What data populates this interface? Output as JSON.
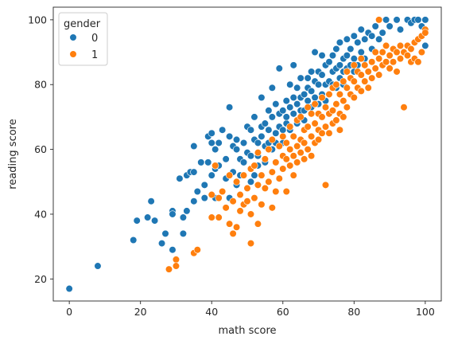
{
  "chart_data": {
    "type": "scatter",
    "title": "",
    "xlabel": "math score",
    "ylabel": "reading score",
    "xlim": [
      -4.5,
      104.5
    ],
    "ylim": [
      13.2,
      103.9
    ],
    "xticks": [
      0,
      20,
      40,
      60,
      80,
      100
    ],
    "yticks": [
      20,
      40,
      60,
      80,
      100
    ],
    "grid": false,
    "legend": {
      "title": "gender",
      "placement": "upper-left"
    },
    "series": [
      {
        "name": "0",
        "color": "#1f77b4",
        "points": [
          [
            0,
            17
          ],
          [
            8,
            24
          ],
          [
            18,
            32
          ],
          [
            19,
            38
          ],
          [
            22,
            39
          ],
          [
            23,
            44
          ],
          [
            24,
            38
          ],
          [
            26,
            31
          ],
          [
            27,
            34
          ],
          [
            29,
            41
          ],
          [
            29,
            40
          ],
          [
            29,
            29
          ],
          [
            31,
            51
          ],
          [
            32,
            39
          ],
          [
            32,
            34
          ],
          [
            33,
            41
          ],
          [
            33,
            52
          ],
          [
            34,
            53
          ],
          [
            35,
            44
          ],
          [
            35,
            61
          ],
          [
            35,
            53
          ],
          [
            36,
            47
          ],
          [
            37,
            56
          ],
          [
            38,
            49
          ],
          [
            38,
            45
          ],
          [
            39,
            56
          ],
          [
            39,
            64
          ],
          [
            40,
            52
          ],
          [
            40,
            62
          ],
          [
            40,
            65
          ],
          [
            41,
            45
          ],
          [
            41,
            54
          ],
          [
            41,
            60
          ],
          [
            42,
            55
          ],
          [
            42,
            62
          ],
          [
            43,
            66
          ],
          [
            44,
            51
          ],
          [
            44,
            57
          ],
          [
            45,
            45
          ],
          [
            45,
            64
          ],
          [
            45,
            73
          ],
          [
            46,
            53
          ],
          [
            46,
            61
          ],
          [
            47,
            49
          ],
          [
            47,
            63
          ],
          [
            47,
            60
          ],
          [
            48,
            57
          ],
          [
            48,
            52
          ],
          [
            49,
            62
          ],
          [
            49,
            56
          ],
          [
            50,
            67
          ],
          [
            50,
            59
          ],
          [
            51,
            50
          ],
          [
            51,
            58
          ],
          [
            51,
            66
          ],
          [
            52,
            52
          ],
          [
            52,
            63
          ],
          [
            52,
            70
          ],
          [
            53,
            55
          ],
          [
            53,
            62
          ],
          [
            53,
            58
          ],
          [
            54,
            64
          ],
          [
            54,
            67
          ],
          [
            54,
            76
          ],
          [
            55,
            61
          ],
          [
            55,
            68
          ],
          [
            55,
            56
          ],
          [
            56,
            62
          ],
          [
            56,
            72
          ],
          [
            56,
            66
          ],
          [
            57,
            60
          ],
          [
            57,
            70
          ],
          [
            57,
            79
          ],
          [
            58,
            65
          ],
          [
            58,
            74
          ],
          [
            58,
            62
          ],
          [
            59,
            67
          ],
          [
            59,
            71
          ],
          [
            59,
            85
          ],
          [
            60,
            66
          ],
          [
            60,
            72
          ],
          [
            60,
            62
          ],
          [
            61,
            68
          ],
          [
            61,
            75
          ],
          [
            61,
            70
          ],
          [
            62,
            80
          ],
          [
            62,
            66
          ],
          [
            62,
            73
          ],
          [
            63,
            71
          ],
          [
            63,
            76
          ],
          [
            63,
            86
          ],
          [
            64,
            74
          ],
          [
            64,
            68
          ],
          [
            64,
            79
          ],
          [
            65,
            72
          ],
          [
            65,
            82
          ],
          [
            65,
            76
          ],
          [
            66,
            77
          ],
          [
            66,
            72
          ],
          [
            66,
            69
          ],
          [
            67,
            82
          ],
          [
            67,
            75
          ],
          [
            67,
            79
          ],
          [
            68,
            78
          ],
          [
            68,
            84
          ],
          [
            68,
            73
          ],
          [
            69,
            81
          ],
          [
            69,
            76
          ],
          [
            69,
            90
          ],
          [
            70,
            80
          ],
          [
            70,
            74
          ],
          [
            70,
            84
          ],
          [
            71,
            83
          ],
          [
            71,
            77
          ],
          [
            71,
            89
          ],
          [
            72,
            80
          ],
          [
            72,
            86
          ],
          [
            72,
            75
          ],
          [
            73,
            81
          ],
          [
            73,
            87
          ],
          [
            73,
            77
          ],
          [
            74,
            84
          ],
          [
            74,
            89
          ],
          [
            74,
            80
          ],
          [
            75,
            85
          ],
          [
            75,
            91
          ],
          [
            75,
            79
          ],
          [
            76,
            86
          ],
          [
            76,
            82
          ],
          [
            76,
            93
          ],
          [
            77,
            84
          ],
          [
            77,
            88
          ],
          [
            77,
            80
          ],
          [
            78,
            89
          ],
          [
            78,
            85
          ],
          [
            78,
            94
          ],
          [
            79,
            86
          ],
          [
            79,
            91
          ],
          [
            80,
            88
          ],
          [
            80,
            95
          ],
          [
            80,
            84
          ],
          [
            81,
            93
          ],
          [
            81,
            86
          ],
          [
            82,
            97
          ],
          [
            82,
            90
          ],
          [
            83,
            94
          ],
          [
            83,
            88
          ],
          [
            84,
            96
          ],
          [
            85,
            91
          ],
          [
            85,
            95
          ],
          [
            86,
            98
          ],
          [
            87,
            94
          ],
          [
            88,
            96
          ],
          [
            89,
            100
          ],
          [
            90,
            98
          ],
          [
            92,
            100
          ],
          [
            93,
            97
          ],
          [
            95,
            100
          ],
          [
            96,
            99
          ],
          [
            97,
            100
          ],
          [
            98,
            100
          ],
          [
            99,
            98
          ],
          [
            100,
            100
          ],
          [
            100,
            92
          ]
        ]
      },
      {
        "name": "1",
        "color": "#ff7f0e",
        "points": [
          [
            28,
            23
          ],
          [
            30,
            26
          ],
          [
            30,
            24
          ],
          [
            35,
            28
          ],
          [
            36,
            29
          ],
          [
            40,
            46
          ],
          [
            40,
            39
          ],
          [
            41,
            55
          ],
          [
            42,
            39
          ],
          [
            42,
            45
          ],
          [
            43,
            47
          ],
          [
            44,
            42
          ],
          [
            45,
            37
          ],
          [
            45,
            52
          ],
          [
            46,
            34
          ],
          [
            46,
            44
          ],
          [
            47,
            36
          ],
          [
            47,
            50
          ],
          [
            48,
            41
          ],
          [
            48,
            46
          ],
          [
            49,
            43
          ],
          [
            49,
            52
          ],
          [
            50,
            48
          ],
          [
            50,
            44
          ],
          [
            51,
            31
          ],
          [
            51,
            40
          ],
          [
            51,
            54
          ],
          [
            52,
            45
          ],
          [
            52,
            55
          ],
          [
            53,
            37
          ],
          [
            53,
            49
          ],
          [
            53,
            59
          ],
          [
            54,
            43
          ],
          [
            54,
            52
          ],
          [
            55,
            57
          ],
          [
            55,
            48
          ],
          [
            56,
            50
          ],
          [
            56,
            60
          ],
          [
            57,
            42
          ],
          [
            57,
            53
          ],
          [
            57,
            63
          ],
          [
            58,
            47
          ],
          [
            58,
            56
          ],
          [
            59,
            61
          ],
          [
            59,
            51
          ],
          [
            60,
            54
          ],
          [
            60,
            64
          ],
          [
            60,
            58
          ],
          [
            61,
            47
          ],
          [
            61,
            57
          ],
          [
            61,
            62
          ],
          [
            62,
            60
          ],
          [
            62,
            55
          ],
          [
            62,
            67
          ],
          [
            63,
            58
          ],
          [
            63,
            64
          ],
          [
            63,
            52
          ],
          [
            64,
            61
          ],
          [
            64,
            69
          ],
          [
            64,
            56
          ],
          [
            65,
            63
          ],
          [
            65,
            59
          ],
          [
            65,
            70
          ],
          [
            66,
            62
          ],
          [
            66,
            66
          ],
          [
            66,
            57
          ],
          [
            67,
            67
          ],
          [
            67,
            60
          ],
          [
            67,
            73
          ],
          [
            68,
            64
          ],
          [
            68,
            71
          ],
          [
            68,
            58
          ],
          [
            69,
            68
          ],
          [
            69,
            62
          ],
          [
            69,
            74
          ],
          [
            70,
            66
          ],
          [
            70,
            71
          ],
          [
            70,
            63
          ],
          [
            71,
            70
          ],
          [
            71,
            65
          ],
          [
            71,
            76
          ],
          [
            72,
            67
          ],
          [
            72,
            73
          ],
          [
            72,
            49
          ],
          [
            73,
            71
          ],
          [
            73,
            77
          ],
          [
            73,
            65
          ],
          [
            74,
            72
          ],
          [
            74,
            68
          ],
          [
            74,
            79
          ],
          [
            75,
            74
          ],
          [
            75,
            69
          ],
          [
            75,
            80
          ],
          [
            76,
            71
          ],
          [
            76,
            77
          ],
          [
            76,
            66
          ],
          [
            77,
            75
          ],
          [
            77,
            81
          ],
          [
            77,
            70
          ],
          [
            78,
            79
          ],
          [
            78,
            73
          ],
          [
            78,
            84
          ],
          [
            79,
            77
          ],
          [
            79,
            82
          ],
          [
            80,
            76
          ],
          [
            80,
            81
          ],
          [
            80,
            86
          ],
          [
            81,
            79
          ],
          [
            81,
            84
          ],
          [
            82,
            83
          ],
          [
            82,
            78
          ],
          [
            82,
            88
          ],
          [
            83,
            81
          ],
          [
            83,
            86
          ],
          [
            84,
            84
          ],
          [
            84,
            79
          ],
          [
            85,
            87
          ],
          [
            85,
            82
          ],
          [
            86,
            85
          ],
          [
            86,
            90
          ],
          [
            87,
            88
          ],
          [
            87,
            83
          ],
          [
            88,
            90
          ],
          [
            88,
            86
          ],
          [
            89,
            87
          ],
          [
            89,
            92
          ],
          [
            90,
            89
          ],
          [
            90,
            85
          ],
          [
            91,
            91
          ],
          [
            91,
            87
          ],
          [
            92,
            90
          ],
          [
            92,
            84
          ],
          [
            93,
            88
          ],
          [
            93,
            92
          ],
          [
            94,
            73
          ],
          [
            94,
            90
          ],
          [
            95,
            92
          ],
          [
            95,
            89
          ],
          [
            96,
            91
          ],
          [
            96,
            87
          ],
          [
            97,
            93
          ],
          [
            97,
            88
          ],
          [
            98,
            94
          ],
          [
            98,
            87
          ],
          [
            99,
            95
          ],
          [
            99,
            90
          ],
          [
            100,
            97
          ],
          [
            100,
            96
          ],
          [
            87,
            100
          ]
        ]
      }
    ]
  }
}
